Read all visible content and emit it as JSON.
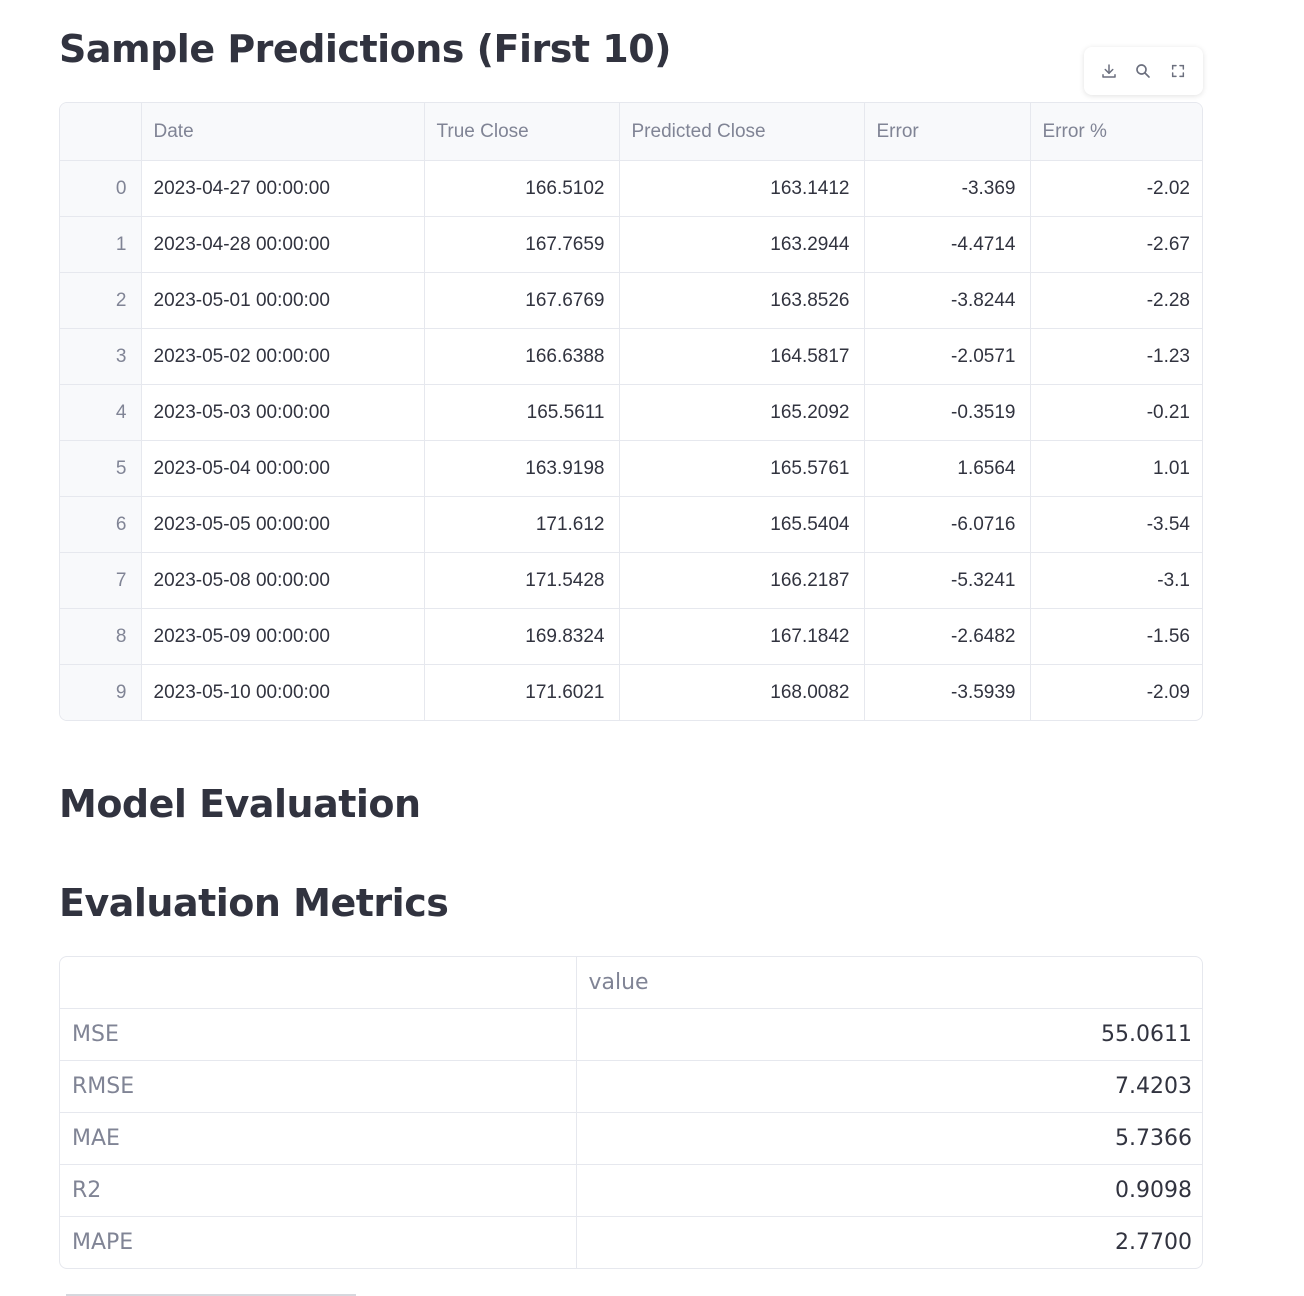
{
  "sample_predictions": {
    "title": "Sample Predictions (First 10)",
    "toolbar": {
      "download_icon": "download-icon",
      "search_icon": "search-icon",
      "fullscreen_icon": "fullscreen-icon"
    },
    "columns": [
      "",
      "Date",
      "True Close",
      "Predicted Close",
      "Error",
      "Error %"
    ],
    "rows": [
      [
        "0",
        "2023-04-27 00:00:00",
        "166.5102",
        "163.1412",
        "-3.369",
        "-2.02"
      ],
      [
        "1",
        "2023-04-28 00:00:00",
        "167.7659",
        "163.2944",
        "-4.4714",
        "-2.67"
      ],
      [
        "2",
        "2023-05-01 00:00:00",
        "167.6769",
        "163.8526",
        "-3.8244",
        "-2.28"
      ],
      [
        "3",
        "2023-05-02 00:00:00",
        "166.6388",
        "164.5817",
        "-2.0571",
        "-1.23"
      ],
      [
        "4",
        "2023-05-03 00:00:00",
        "165.5611",
        "165.2092",
        "-0.3519",
        "-0.21"
      ],
      [
        "5",
        "2023-05-04 00:00:00",
        "163.9198",
        "165.5761",
        "1.6564",
        "1.01"
      ],
      [
        "6",
        "2023-05-05 00:00:00",
        "171.612",
        "165.5404",
        "-6.0716",
        "-3.54"
      ],
      [
        "7",
        "2023-05-08 00:00:00",
        "171.5428",
        "166.2187",
        "-5.3241",
        "-3.1"
      ],
      [
        "8",
        "2023-05-09 00:00:00",
        "169.8324",
        "167.1842",
        "-2.6482",
        "-1.56"
      ],
      [
        "9",
        "2023-05-10 00:00:00",
        "171.6021",
        "168.0082",
        "-3.5939",
        "-2.09"
      ]
    ]
  },
  "model_evaluation": {
    "title": "Model Evaluation"
  },
  "evaluation_metrics": {
    "title": "Evaluation Metrics",
    "columns": [
      "",
      "value"
    ],
    "rows": [
      [
        "MSE",
        "55.0611"
      ],
      [
        "RMSE",
        "7.4203"
      ],
      [
        "MAE",
        "5.7366"
      ],
      [
        "R2",
        "0.9098"
      ],
      [
        "MAPE",
        "2.7700"
      ]
    ]
  }
}
